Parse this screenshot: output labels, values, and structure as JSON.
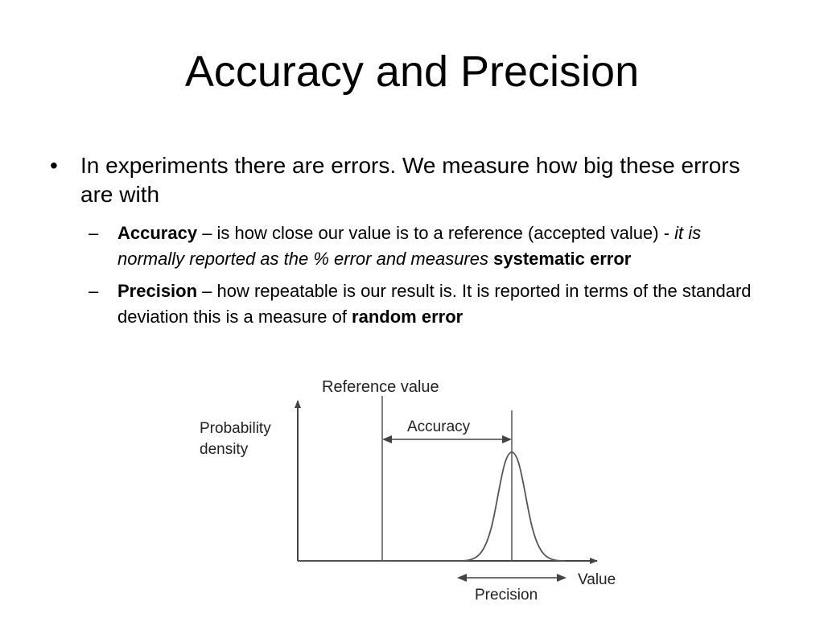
{
  "slide": {
    "title": "Accuracy and Precision",
    "bullet1": {
      "text": "In experiments there are errors.  We measure how big these errors are with"
    },
    "accuracy": {
      "term": "Accuracy",
      "def_plain": " – is how close our value is to a reference (accepted value) - ",
      "def_italic": "it is normally reported as the % error and measures",
      "def_tail_sep": " ",
      "def_bold": "systematic error"
    },
    "precision": {
      "term": "Precision",
      "def_plain": " – how repeatable is our result is.  It is reported in terms of the standard deviation this is a measure of ",
      "def_bold": "random error"
    }
  },
  "figure": {
    "reference_label": "Reference value",
    "ylabel_line1": "Probability",
    "ylabel_line2": "density",
    "accuracy_label": "Accuracy",
    "xlabel": "Value",
    "precision_label": "Precision"
  },
  "colors": {
    "text": "#000000",
    "figure_lines": "#444444"
  }
}
